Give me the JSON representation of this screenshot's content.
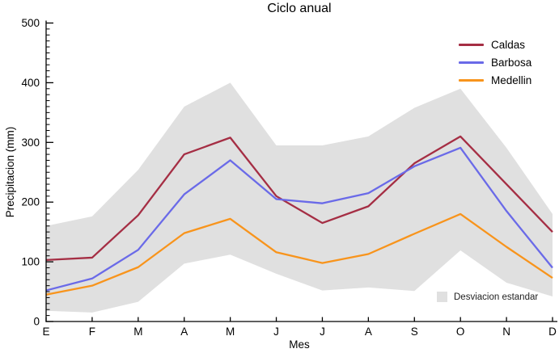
{
  "title": "Ciclo anual",
  "legend": {
    "std_label": "Desviacion estandar"
  },
  "chart_data": {
    "type": "line",
    "title": "Ciclo anual",
    "xlabel": "Mes",
    "ylabel": "Precipitacion (mm)",
    "categories": [
      "E",
      "F",
      "M",
      "A",
      "M",
      "J",
      "J",
      "A",
      "S",
      "O",
      "N",
      "D"
    ],
    "y_ticks": [
      0,
      100,
      200,
      300,
      400,
      500
    ],
    "ylim": [
      0,
      500
    ],
    "grid": false,
    "legend_position": "top-right",
    "series": [
      {
        "name": "Caldas",
        "color": "#a52e44",
        "values": [
          103,
          107,
          178,
          280,
          308,
          210,
          165,
          193,
          265,
          310,
          230,
          150
        ]
      },
      {
        "name": "Barbosa",
        "color": "#6a6ae8",
        "values": [
          52,
          72,
          120,
          213,
          270,
          205,
          198,
          215,
          260,
          291,
          185,
          90
        ]
      },
      {
        "name": "Medellin",
        "color": "#f8941c",
        "values": [
          45,
          60,
          91,
          148,
          172,
          116,
          98,
          113,
          147,
          180,
          125,
          73
        ]
      }
    ],
    "band": {
      "name": "Desviacion estandar",
      "color": "#e0e0e0",
      "upper": [
        160,
        176,
        254,
        360,
        400,
        295,
        295,
        310,
        358,
        390,
        291,
        180
      ],
      "lower": [
        18,
        15,
        33,
        97,
        112,
        80,
        52,
        57,
        51,
        119,
        65,
        42
      ]
    }
  }
}
